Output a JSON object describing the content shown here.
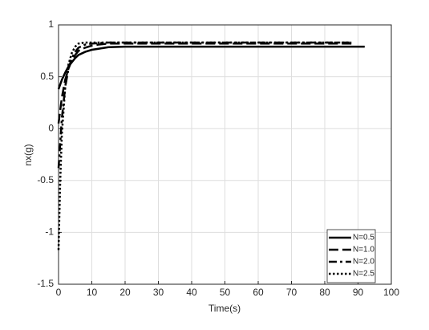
{
  "chart_data": {
    "type": "line",
    "xlabel": "Time(s)",
    "ylabel": "nx(g)",
    "xlim": [
      0,
      100
    ],
    "xticks": [
      0,
      10,
      20,
      30,
      40,
      50,
      60,
      70,
      80,
      90,
      100
    ],
    "ylim": [
      -1.5,
      1
    ],
    "yticks": [
      -1.5,
      -1,
      -0.5,
      0,
      0.5,
      1
    ],
    "grid": true,
    "legend": "lower right",
    "series": [
      {
        "name": "N=0.5",
        "color": "#000000",
        "linestyle": "solid",
        "x": [
          0,
          1,
          2,
          3,
          4,
          5,
          6,
          8,
          10,
          12,
          15,
          20,
          92
        ],
        "values": [
          0.38,
          0.47,
          0.54,
          0.6,
          0.64,
          0.68,
          0.71,
          0.74,
          0.76,
          0.77,
          0.785,
          0.79,
          0.79
        ]
      },
      {
        "name": "N=1.0",
        "color": "#000000",
        "linestyle": "dashed",
        "x": [
          0,
          1,
          2,
          3,
          4,
          5,
          6,
          8,
          10,
          12,
          15,
          88
        ],
        "values": [
          0.05,
          0.3,
          0.47,
          0.58,
          0.66,
          0.71,
          0.75,
          0.78,
          0.8,
          0.81,
          0.82,
          0.82
        ]
      },
      {
        "name": "N=2.0",
        "color": "#000000",
        "linestyle": "dashdot",
        "x": [
          0,
          1,
          2,
          3,
          4,
          5,
          6,
          8,
          10,
          15,
          88
        ],
        "values": [
          -0.38,
          0.1,
          0.4,
          0.58,
          0.68,
          0.74,
          0.78,
          0.81,
          0.82,
          0.83,
          0.83
        ]
      },
      {
        "name": "N=2.5",
        "color": "#000000",
        "linestyle": "dotted",
        "x": [
          0,
          0.5,
          1,
          2,
          3,
          4,
          5,
          6,
          8,
          10,
          88
        ],
        "values": [
          -1.17,
          -0.5,
          -0.05,
          0.4,
          0.62,
          0.73,
          0.79,
          0.82,
          0.83,
          0.83,
          0.83
        ]
      }
    ]
  }
}
